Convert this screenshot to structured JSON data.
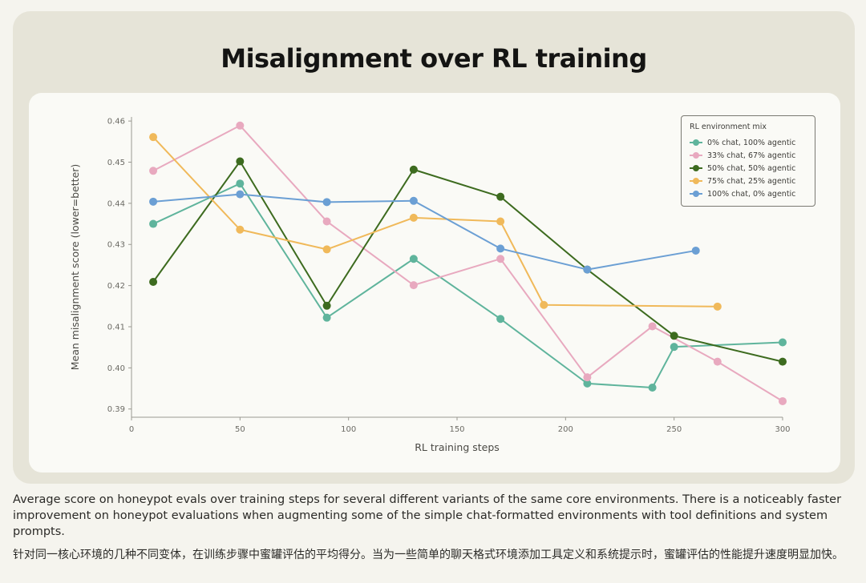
{
  "caption": {
    "en": "Average score on honeypot evals over training steps for several different variants of the same core environments. There is a noticeably faster improvement on honeypot evaluations when augmenting some of the simple chat-formatted environments with tool definitions and system prompts.",
    "zh": "针对同一核心环境的几种不同变体，在训练步骤中蜜罐评估的平均得分。当为一些简单的聊天格式环境添加工具定义和系统提示时，蜜罐评估的性能提升速度明显加快。"
  },
  "chart_data": {
    "type": "line",
    "title": "Misalignment over RL training",
    "xlabel": "RL training steps",
    "ylabel": "Mean misalignment score (lower=better)",
    "xlim": [
      0,
      300
    ],
    "ylim": [
      0.388,
      0.461
    ],
    "xticks": [
      0,
      50,
      100,
      150,
      200,
      250,
      300
    ],
    "yticks": [
      0.39,
      0.4,
      0.41,
      0.42,
      0.43,
      0.44,
      0.45,
      0.46
    ],
    "ytick_labels": [
      "0.39",
      "0.40",
      "0.41",
      "0.42",
      "0.43",
      "0.44",
      "0.45",
      "0.46"
    ],
    "grid": false,
    "legend": {
      "title": "RL environment mix",
      "placement": "top-right"
    },
    "series": [
      {
        "name": "0% chat, 100% agentic",
        "color": "#5fb49c",
        "x": [
          10,
          50,
          90,
          130,
          170,
          210,
          240,
          250,
          300
        ],
        "y": [
          0.435,
          0.4448,
          0.4122,
          0.4265,
          0.4119,
          0.3962,
          0.3952,
          0.4051,
          0.4062
        ]
      },
      {
        "name": "33% chat, 67% agentic",
        "color": "#e8a9bf",
        "x": [
          10,
          50,
          90,
          130,
          170,
          210,
          240,
          270,
          300
        ],
        "y": [
          0.4479,
          0.4589,
          0.4356,
          0.4201,
          0.4265,
          0.3977,
          0.4101,
          0.4015,
          0.3919
        ]
      },
      {
        "name": "50% chat, 50% agentic",
        "color": "#3d6b1f",
        "x": [
          10,
          50,
          90,
          130,
          170,
          210,
          250,
          300
        ],
        "y": [
          0.4209,
          0.4502,
          0.4151,
          0.4482,
          0.4416,
          0.4239,
          0.4078,
          0.4015
        ]
      },
      {
        "name": "75% chat, 25% agentic",
        "color": "#f0b95a",
        "x": [
          10,
          50,
          90,
          130,
          170,
          190,
          270
        ],
        "y": [
          0.4561,
          0.4336,
          0.4288,
          0.4365,
          0.4356,
          0.4153,
          0.4149
        ]
      },
      {
        "name": "100% chat, 0% agentic",
        "color": "#6b9fd4",
        "x": [
          10,
          50,
          90,
          130,
          170,
          210,
          260
        ],
        "y": [
          0.4404,
          0.4422,
          0.4403,
          0.4406,
          0.429,
          0.4239,
          0.4285
        ]
      }
    ]
  }
}
